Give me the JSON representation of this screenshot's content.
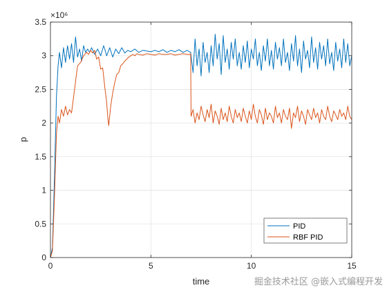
{
  "chart_data": {
    "type": "line",
    "title": "",
    "xlabel": "time",
    "ylabel": "p",
    "y_exponent_label": "×10⁶",
    "xlim": [
      0,
      15
    ],
    "ylim": [
      0,
      3.5
    ],
    "xticks": [
      0,
      5,
      10,
      15
    ],
    "yticks": [
      0,
      0.5,
      1,
      1.5,
      2,
      2.5,
      3,
      3.5
    ],
    "grid": true,
    "legend_position": "bottom-right",
    "series": [
      {
        "name": "PID",
        "color": "#0072BD",
        "x": [
          0,
          0.1,
          0.2,
          0.3,
          0.38,
          0.45,
          0.55,
          0.65,
          0.75,
          0.85,
          0.95,
          1.05,
          1.15,
          1.25,
          1.35,
          1.45,
          1.55,
          1.65,
          1.75,
          1.85,
          1.95,
          2.05,
          2.2,
          2.35,
          2.5,
          2.65,
          2.8,
          2.95,
          3.1,
          3.25,
          3.4,
          3.55,
          3.7,
          3.85,
          4.0,
          4.2,
          4.4,
          4.6,
          4.8,
          5.0,
          5.2,
          5.4,
          5.6,
          5.8,
          6.0,
          6.2,
          6.4,
          6.6,
          6.8,
          6.98,
          7.0,
          7.1,
          7.2,
          7.3,
          7.4,
          7.5,
          7.6,
          7.7,
          7.8,
          7.9,
          8.0,
          8.1,
          8.2,
          8.3,
          8.4,
          8.5,
          8.6,
          8.7,
          8.8,
          8.9,
          9.0,
          9.1,
          9.2,
          9.3,
          9.4,
          9.5,
          9.6,
          9.7,
          9.8,
          9.9,
          10.0,
          10.1,
          10.2,
          10.3,
          10.4,
          10.5,
          10.6,
          10.7,
          10.8,
          10.9,
          11.0,
          11.1,
          11.2,
          11.3,
          11.4,
          11.5,
          11.6,
          11.7,
          11.8,
          11.9,
          12.0,
          12.1,
          12.2,
          12.3,
          12.4,
          12.5,
          12.6,
          12.7,
          12.8,
          12.9,
          13.0,
          13.1,
          13.2,
          13.3,
          13.4,
          13.5,
          13.6,
          13.7,
          13.8,
          13.9,
          14.0,
          14.1,
          14.2,
          14.3,
          14.4,
          14.5,
          14.6,
          14.7,
          14.8,
          14.9,
          15.0
        ],
        "y": [
          0,
          0.15,
          1.2,
          2.4,
          2.85,
          3.05,
          2.82,
          3.12,
          2.9,
          3.15,
          2.95,
          3.18,
          2.9,
          3.28,
          2.98,
          3.1,
          2.92,
          3.15,
          3.05,
          3.1,
          3.05,
          3.12,
          3.02,
          3.1,
          3.0,
          3.15,
          3.0,
          3.12,
          2.98,
          3.1,
          3.03,
          3.12,
          3.04,
          3.08,
          3.06,
          3.1,
          3.05,
          3.08,
          3.07,
          3.06,
          3.08,
          3.06,
          3.09,
          3.05,
          3.08,
          3.06,
          3.09,
          3.05,
          3.08,
          3.05,
          3.0,
          2.75,
          3.25,
          2.85,
          3.1,
          2.7,
          3.2,
          2.9,
          3.05,
          2.75,
          3.15,
          2.85,
          3.32,
          2.95,
          3.18,
          2.72,
          3.3,
          2.9,
          3.1,
          2.8,
          3.2,
          2.95,
          3.25,
          2.85,
          3.05,
          2.8,
          3.15,
          2.9,
          3.22,
          2.82,
          3.1,
          2.95,
          3.25,
          2.85,
          3.05,
          2.78,
          3.15,
          2.92,
          3.25,
          2.85,
          3.08,
          2.8,
          3.2,
          2.95,
          3.12,
          2.85,
          3.25,
          2.9,
          3.05,
          2.78,
          3.18,
          2.92,
          3.3,
          2.85,
          3.1,
          2.75,
          3.22,
          2.95,
          3.08,
          2.82,
          3.28,
          2.9,
          3.12,
          2.8,
          3.2,
          2.95,
          3.15,
          2.85,
          3.25,
          2.88,
          3.05,
          2.78,
          3.2,
          2.92,
          3.1,
          2.82,
          3.25,
          2.9,
          3.18,
          2.85,
          3.0
        ]
      },
      {
        "name": "RBF PID",
        "color": "#D95319",
        "x": [
          0,
          0.1,
          0.2,
          0.3,
          0.38,
          0.45,
          0.55,
          0.65,
          0.75,
          0.85,
          0.95,
          1.05,
          1.2,
          1.35,
          1.5,
          1.65,
          1.8,
          1.9,
          2.0,
          2.1,
          2.2,
          2.3,
          2.4,
          2.5,
          2.6,
          2.7,
          2.8,
          2.85,
          2.9,
          3.0,
          3.1,
          3.2,
          3.3,
          3.4,
          3.5,
          3.6,
          3.7,
          3.8,
          3.9,
          4.0,
          4.1,
          4.2,
          4.3,
          4.4,
          4.6,
          4.8,
          5.0,
          5.2,
          5.4,
          5.6,
          5.8,
          6.0,
          6.2,
          6.4,
          6.6,
          6.8,
          6.95,
          6.98,
          7.0,
          7.1,
          7.2,
          7.3,
          7.4,
          7.5,
          7.6,
          7.7,
          7.8,
          7.9,
          8.0,
          8.1,
          8.2,
          8.3,
          8.4,
          8.5,
          8.6,
          8.7,
          8.8,
          8.9,
          9.0,
          9.1,
          9.2,
          9.3,
          9.4,
          9.5,
          9.6,
          9.7,
          9.8,
          9.9,
          10.0,
          10.1,
          10.2,
          10.3,
          10.4,
          10.5,
          10.6,
          10.7,
          10.8,
          10.9,
          11.0,
          11.1,
          11.2,
          11.3,
          11.4,
          11.5,
          11.6,
          11.7,
          11.8,
          11.9,
          12.0,
          12.1,
          12.2,
          12.3,
          12.4,
          12.5,
          12.6,
          12.7,
          12.8,
          12.9,
          13.0,
          13.1,
          13.2,
          13.3,
          13.4,
          13.5,
          13.6,
          13.7,
          13.8,
          13.9,
          14.0,
          14.1,
          14.2,
          14.3,
          14.4,
          14.5,
          14.6,
          14.7,
          14.8,
          14.9,
          15.0
        ],
        "y": [
          0,
          0.1,
          0.9,
          1.85,
          2.1,
          2.0,
          2.2,
          2.1,
          2.25,
          2.12,
          2.2,
          2.15,
          2.5,
          2.85,
          2.9,
          3.0,
          3.05,
          3.02,
          3.08,
          3.04,
          3.08,
          2.95,
          2.98,
          2.8,
          2.82,
          2.55,
          2.3,
          2.1,
          1.96,
          2.25,
          2.45,
          2.6,
          2.72,
          2.75,
          2.85,
          2.88,
          2.92,
          2.95,
          2.98,
          3.0,
          3.02,
          3.0,
          3.03,
          3.02,
          3.01,
          3.03,
          3.02,
          3.01,
          3.03,
          3.02,
          3.02,
          3.03,
          3.01,
          3.02,
          3.03,
          3.02,
          3.02,
          3.03,
          2.1,
          2.2,
          2.0,
          2.15,
          2.05,
          2.25,
          2.12,
          2.02,
          2.2,
          2.08,
          2.28,
          2.0,
          2.18,
          2.1,
          1.98,
          2.22,
          2.05,
          2.15,
          2.02,
          2.25,
          2.1,
          2.0,
          2.2,
          2.08,
          2.15,
          2.02,
          2.22,
          2.1,
          2.0,
          2.18,
          2.05,
          2.28,
          2.1,
          2.0,
          2.2,
          2.12,
          1.98,
          2.22,
          2.05,
          2.15,
          2.1,
          2.0,
          2.25,
          2.08,
          2.15,
          2.0,
          2.2,
          2.1,
          2.05,
          2.22,
          1.92,
          2.15,
          2.08,
          2.25,
          2.02,
          2.18,
          2.1,
          1.98,
          2.2,
          2.12,
          2.05,
          2.22,
          2.08,
          2.15,
          2.0,
          2.2,
          2.1,
          2.05,
          2.25,
          2.1,
          2.02,
          2.18,
          2.12,
          2.05,
          2.2,
          2.1,
          2.15,
          2.05,
          2.25,
          2.1,
          2.05
        ]
      }
    ]
  },
  "watermark": "掘金技术社区 @嵌入式编程开发"
}
